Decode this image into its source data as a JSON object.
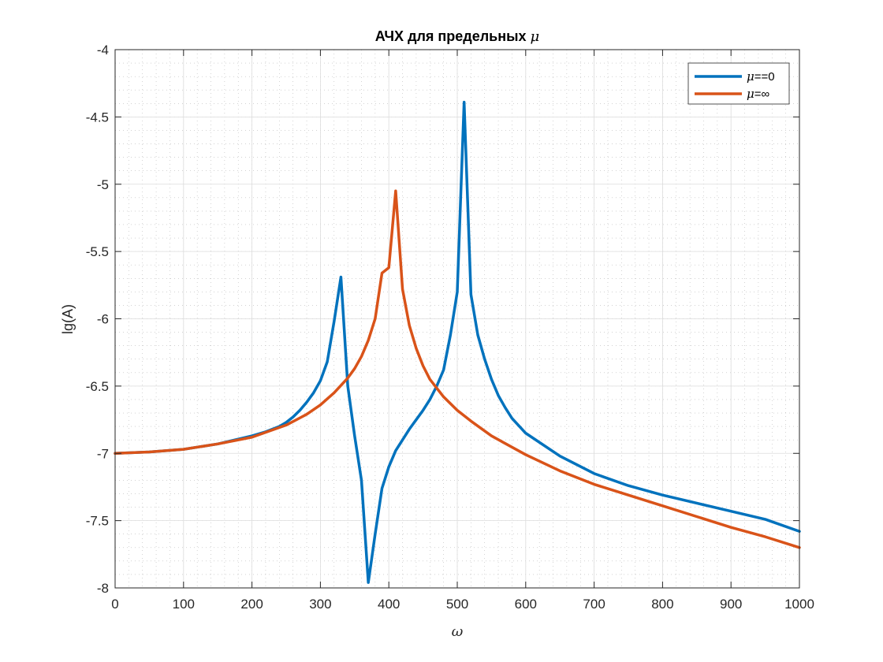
{
  "chart_data": {
    "type": "line",
    "title": {
      "prefix": "АЧХ для предельных ",
      "symbol": "μ"
    },
    "xlabel": "ω",
    "ylabel": "lg(A)",
    "xlim": [
      0,
      1000
    ],
    "ylim": [
      -8,
      -4
    ],
    "xticks": [
      0,
      100,
      200,
      300,
      400,
      500,
      600,
      700,
      800,
      900,
      1000
    ],
    "yticks": [
      -8,
      -7.5,
      -7,
      -6.5,
      -6,
      -5.5,
      -5,
      -4.5,
      -4
    ],
    "xtick_labels": [
      "0",
      "100",
      "200",
      "300",
      "400",
      "500",
      "600",
      "700",
      "800",
      "900",
      "1000"
    ],
    "ytick_labels": [
      "-8",
      "-7.5",
      "-7",
      "-6.5",
      "-6",
      "-5.5",
      "-5",
      "-4.5",
      "-4"
    ],
    "grid": true,
    "minor_grid": true,
    "legend_position": "top-right",
    "series": [
      {
        "symbol": "μ",
        "label_suffix": "==0",
        "color": "#0072BD",
        "x": [
          0,
          50,
          100,
          150,
          200,
          220,
          240,
          250,
          260,
          270,
          280,
          290,
          300,
          310,
          320,
          330,
          340,
          350,
          360,
          370,
          380,
          390,
          400,
          410,
          420,
          430,
          440,
          450,
          460,
          470,
          480,
          490,
          500,
          510,
          520,
          530,
          540,
          550,
          560,
          570,
          580,
          600,
          650,
          700,
          750,
          800,
          850,
          900,
          950,
          1000
        ],
        "y": [
          -7.0,
          -6.99,
          -6.97,
          -6.93,
          -6.87,
          -6.84,
          -6.8,
          -6.77,
          -6.73,
          -6.68,
          -6.62,
          -6.55,
          -6.46,
          -6.32,
          -6.02,
          -5.69,
          -6.5,
          -6.87,
          -7.2,
          -7.96,
          -7.6,
          -7.26,
          -7.1,
          -6.98,
          -6.9,
          -6.82,
          -6.75,
          -6.68,
          -6.6,
          -6.5,
          -6.38,
          -6.12,
          -5.8,
          -4.39,
          -5.82,
          -6.12,
          -6.3,
          -6.45,
          -6.57,
          -6.66,
          -6.74,
          -6.85,
          -7.02,
          -7.15,
          -7.24,
          -7.31,
          -7.37,
          -7.43,
          -7.49,
          -7.58
        ]
      },
      {
        "symbol": "μ",
        "label_suffix": "=∞",
        "color": "#D95319",
        "x": [
          0,
          50,
          100,
          150,
          200,
          250,
          280,
          300,
          320,
          340,
          350,
          360,
          370,
          380,
          390,
          400,
          410,
          420,
          430,
          440,
          450,
          460,
          480,
          500,
          520,
          550,
          600,
          650,
          700,
          750,
          800,
          850,
          900,
          950,
          1000
        ],
        "y": [
          -7.0,
          -6.99,
          -6.97,
          -6.93,
          -6.88,
          -6.79,
          -6.71,
          -6.64,
          -6.55,
          -6.44,
          -6.37,
          -6.28,
          -6.16,
          -6.0,
          -5.66,
          -5.62,
          -5.05,
          -5.78,
          -6.05,
          -6.22,
          -6.35,
          -6.45,
          -6.58,
          -6.68,
          -6.76,
          -6.87,
          -7.01,
          -7.13,
          -7.23,
          -7.31,
          -7.39,
          -7.47,
          -7.55,
          -7.62,
          -7.7
        ]
      }
    ]
  }
}
